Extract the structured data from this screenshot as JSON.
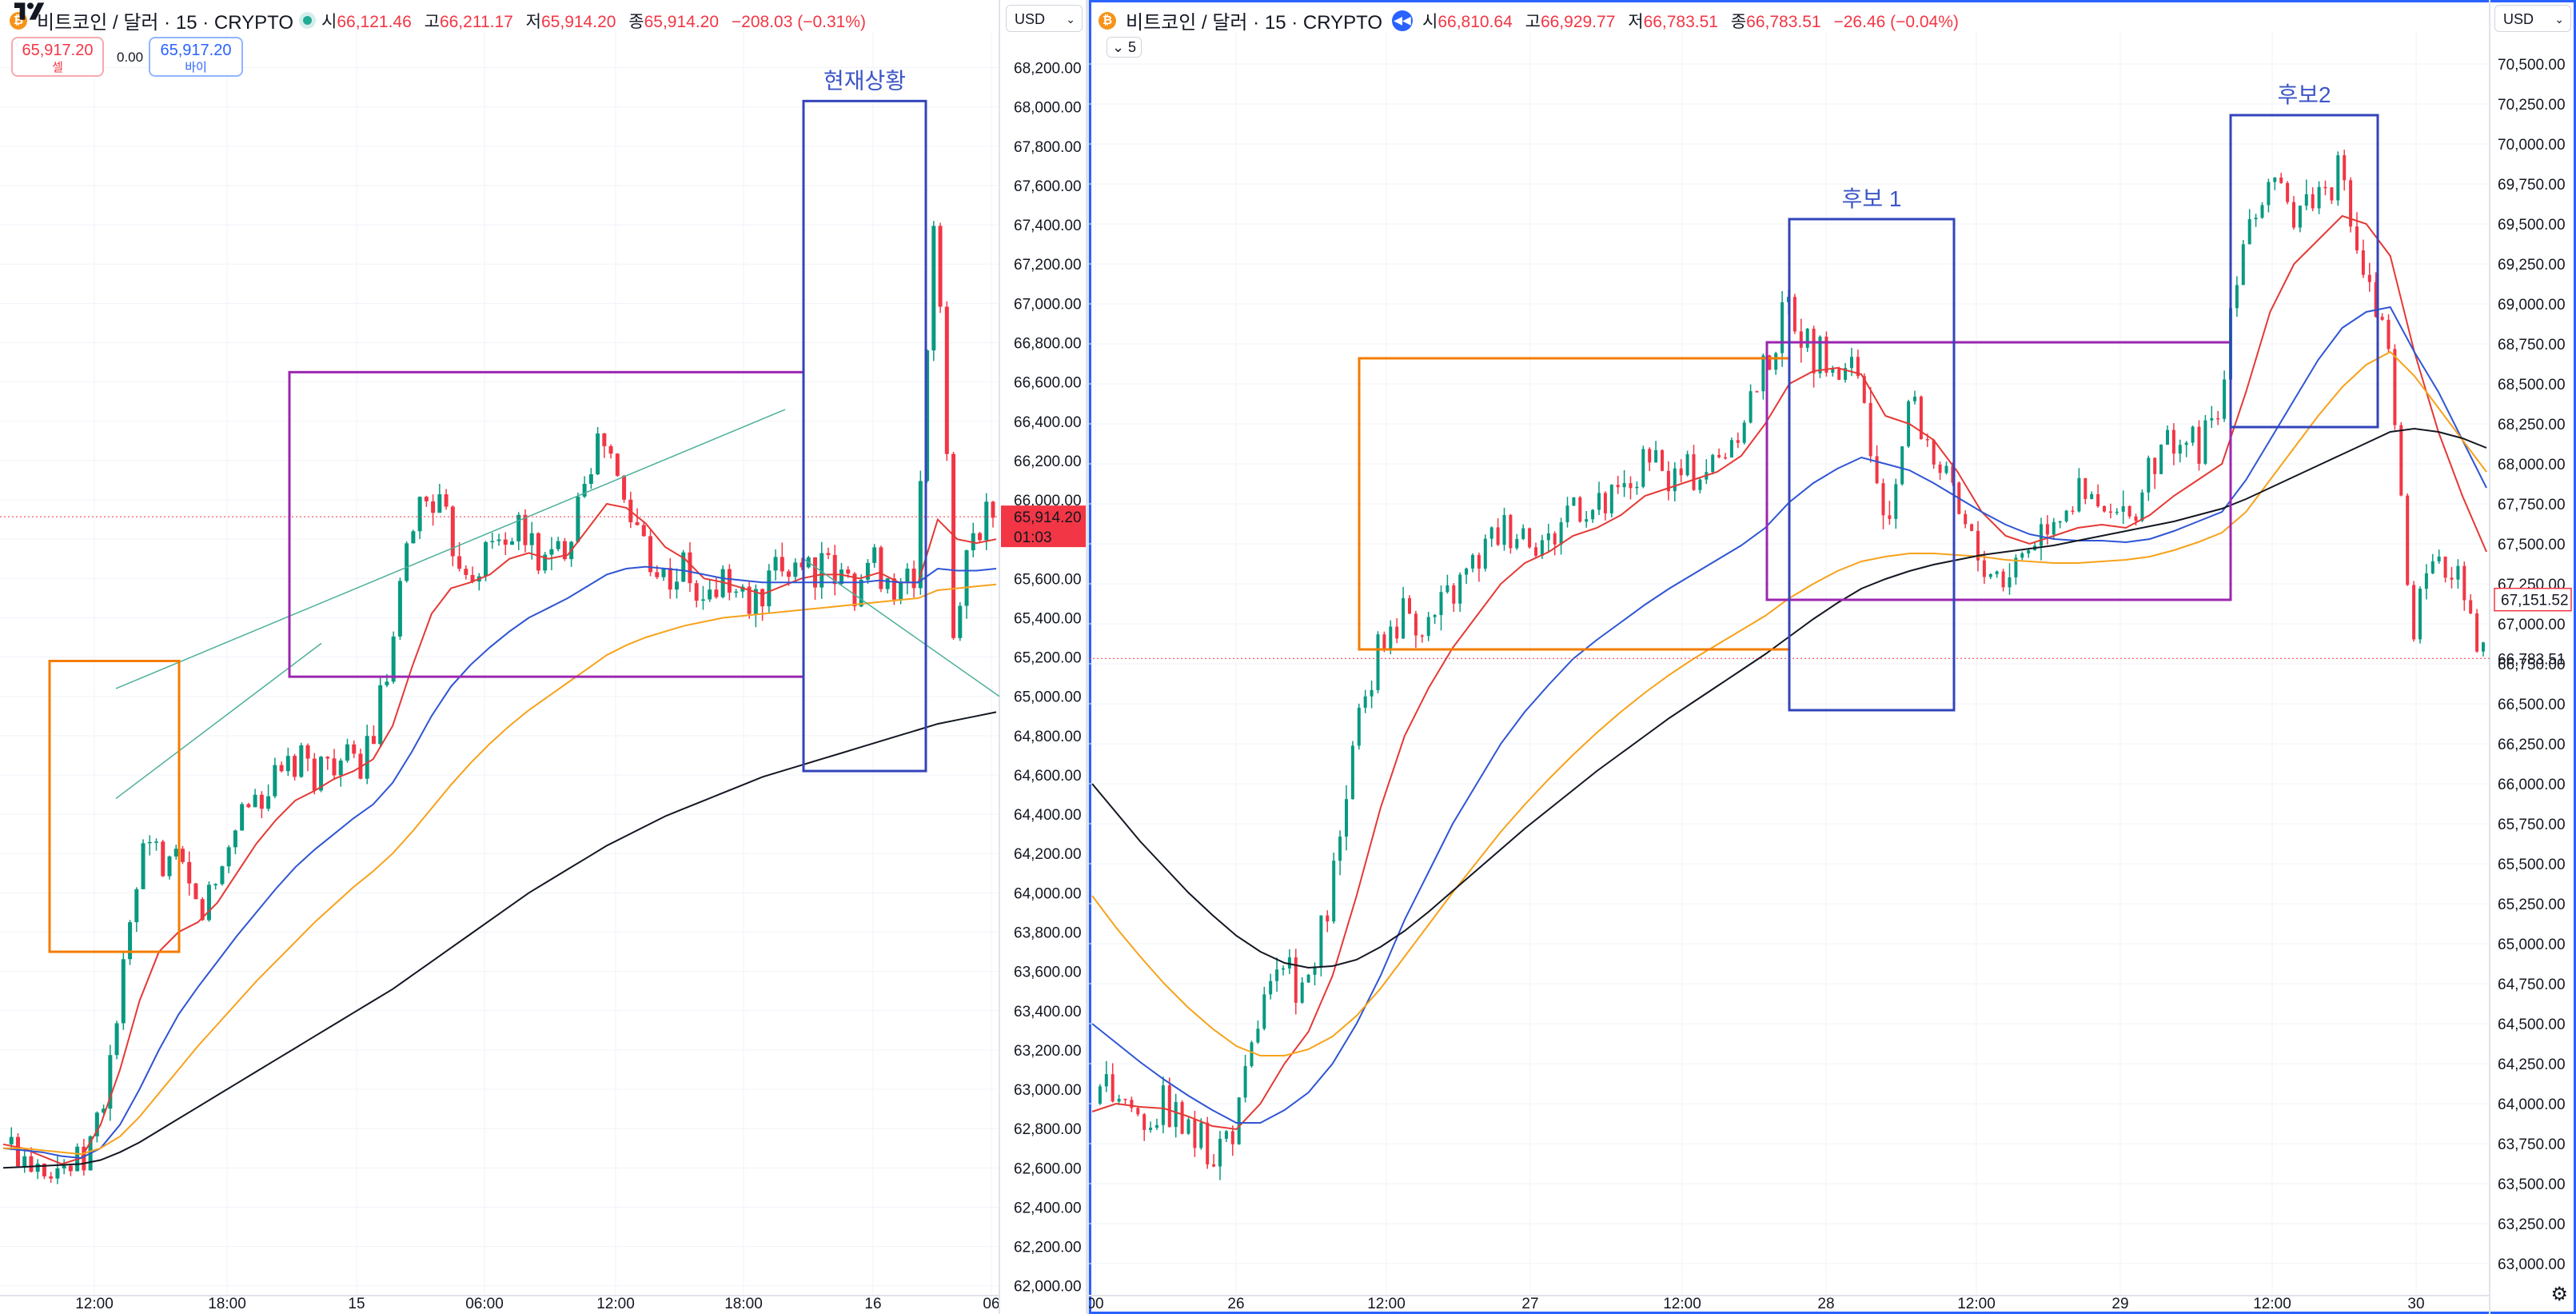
{
  "left_chart": {
    "symbol_name": "비트코인",
    "currency": "달러",
    "interval": "15",
    "exchange": "CRYPTO",
    "ohlc": {
      "open_label": "시",
      "open": "66,121.46",
      "high_label": "고",
      "high": "66,211.17",
      "low_label": "저",
      "low": "65,914.20",
      "close_label": "종",
      "close": "65,914.20",
      "change": "−208.03 (−0.31%)"
    },
    "sell": {
      "price": "65,917.20",
      "label": "셀"
    },
    "buy": {
      "price": "65,917.20",
      "label": "바이"
    },
    "spread": "0.00",
    "currency_select": "USD",
    "price_badge": "65,914.20",
    "countdown": "01:03",
    "annotation": "현재상황",
    "brand_icon": "tradingview-logo",
    "status_icon": "live-dot-icon"
  },
  "right_chart": {
    "symbol_name": "비트코인",
    "currency": "달러",
    "interval": "15",
    "exchange": "CRYPTO",
    "ohlc": {
      "open_label": "시",
      "open": "66,810.64",
      "high_label": "고",
      "high": "66,929.77",
      "low_label": "저",
      "low": "66,783.51",
      "close_label": "종",
      "close": "66,783.51",
      "change": "−26.46 (−0.04%)"
    },
    "indicator_count": "5",
    "currency_select": "USD",
    "price_badge": "66,783.51",
    "ma_badge": "67,151.52",
    "annotation_1": "후보 1",
    "annotation_2": "후보2",
    "replay_icon": "rewind-icon",
    "settings_icon": "gear-icon"
  },
  "colors": {
    "up": "#089981",
    "down": "#f23645",
    "ma_red": "#e53935",
    "ma_blue": "#2f55d4",
    "ma_orange": "#f7a21b",
    "ma_black": "#131722",
    "box_orange": "#f57c00",
    "box_purple": "#9c27b0",
    "box_blue": "#3344bb",
    "trend": "#4caf9a"
  },
  "chart_data": [
    {
      "type": "candlestick",
      "title": "비트코인 / 달러 · 15 · CRYPTO",
      "y_ticks": [
        62000,
        62200,
        62400,
        62600,
        62800,
        63000,
        63200,
        63400,
        63600,
        63800,
        64000,
        64200,
        64400,
        64600,
        64800,
        65000,
        65200,
        65400,
        65600,
        65800,
        66000,
        66200,
        66400,
        66600,
        66800,
        67000,
        67200,
        67400,
        67600,
        67800,
        68000,
        68200
      ],
      "ylim": [
        61950,
        68300
      ],
      "x_ticks": [
        "12:00",
        "18:00",
        "15",
        "06:00",
        "12:00",
        "18:00",
        "16",
        "06"
      ],
      "close_path": [
        62720,
        62680,
        62650,
        62610,
        62600,
        62900,
        63500,
        64150,
        64200,
        64100,
        63900,
        64050,
        64400,
        64500,
        64550,
        64650,
        64620,
        64700,
        64620,
        64800,
        65200,
        65900,
        66050,
        65800,
        65650,
        65750,
        65850,
        65800,
        65650,
        65800,
        66200,
        66300,
        65950,
        65800,
        65600,
        65650,
        65450,
        65600,
        65500,
        65450,
        65650,
        65700,
        65650,
        65600,
        65550,
        65700,
        65500,
        65600,
        67550,
        65300,
        65900,
        65914.2
      ],
      "moving_averages": [
        {
          "color": "red",
          "values": [
            62720,
            62700,
            62660,
            62620,
            62650,
            62820,
            63100,
            63450,
            63700,
            63800,
            63850,
            63950,
            64100,
            64250,
            64370,
            64470,
            64520,
            64580,
            64620,
            64680,
            64850,
            65150,
            65420,
            65550,
            65580,
            65620,
            65700,
            65730,
            65700,
            65720,
            65850,
            65980,
            65960,
            65880,
            65760,
            65700,
            65600,
            65580,
            65550,
            65520,
            65560,
            65600,
            65620,
            65620,
            65600,
            65630,
            65580,
            65580,
            65900,
            65800,
            65780,
            65800
          ]
        },
        {
          "color": "blue",
          "values": [
            62700,
            62690,
            62680,
            62660,
            62650,
            62700,
            62820,
            63000,
            63200,
            63380,
            63520,
            63650,
            63780,
            63900,
            64020,
            64130,
            64220,
            64300,
            64380,
            64450,
            64560,
            64720,
            64900,
            65050,
            65160,
            65250,
            65330,
            65400,
            65450,
            65500,
            65560,
            65620,
            65650,
            65660,
            65650,
            65640,
            65620,
            65600,
            65590,
            65580,
            65580,
            65580,
            65580,
            65580,
            65580,
            65590,
            65580,
            65580,
            65650,
            65640,
            65640,
            65650
          ]
        },
        {
          "color": "orange",
          "values": [
            62700,
            62700,
            62690,
            62680,
            62670,
            62700,
            62760,
            62860,
            62980,
            63100,
            63220,
            63330,
            63440,
            63550,
            63650,
            63750,
            63850,
            63940,
            64030,
            64110,
            64200,
            64310,
            64430,
            64550,
            64660,
            64760,
            64850,
            64930,
            65000,
            65070,
            65140,
            65210,
            65260,
            65300,
            65330,
            65360,
            65380,
            65400,
            65410,
            65420,
            65430,
            65440,
            65450,
            65460,
            65470,
            65480,
            65490,
            65500,
            65540,
            65550,
            65560,
            65570
          ]
        },
        {
          "color": "black",
          "values": [
            62600,
            62605,
            62610,
            62615,
            62620,
            62640,
            62680,
            62730,
            62790,
            62850,
            62910,
            62970,
            63030,
            63090,
            63150,
            63210,
            63270,
            63330,
            63390,
            63450,
            63510,
            63580,
            63650,
            63720,
            63790,
            63860,
            63930,
            64000,
            64060,
            64120,
            64180,
            64240,
            64290,
            64340,
            64390,
            64430,
            64470,
            64510,
            64550,
            64590,
            64620,
            64650,
            64680,
            64710,
            64740,
            64770,
            64800,
            64830,
            64860,
            64880,
            64900,
            64920
          ]
        }
      ],
      "boxes": [
        {
          "color": "orange",
          "price_range": [
            63700,
            65180
          ]
        },
        {
          "color": "purple",
          "price_range": [
            65100,
            66650
          ]
        },
        {
          "color": "blue",
          "label": "현재상황",
          "price_range": [
            64620,
            68030
          ]
        }
      ]
    },
    {
      "type": "candlestick",
      "title": "비트코인 / 달러 · 15 · CRYPTO",
      "y_ticks": [
        63000,
        63250,
        63500,
        63750,
        64000,
        64250,
        64500,
        64750,
        65000,
        65250,
        65500,
        65750,
        66000,
        66250,
        66500,
        66750,
        67000,
        67250,
        67500,
        67750,
        68000,
        68250,
        68500,
        68750,
        69000,
        69250,
        69500,
        69750,
        70000,
        70250,
        70500
      ],
      "ylim": [
        62800,
        70600
      ],
      "x_ticks": [
        "00",
        "26",
        "12:00",
        "27",
        "12:00",
        "28",
        "12:00",
        "29",
        "12:00",
        "30"
      ],
      "close_path": [
        64000,
        64100,
        63900,
        64000,
        63800,
        63700,
        63900,
        64600,
        64800,
        64700,
        65400,
        66300,
        66900,
        67100,
        67000,
        67200,
        67400,
        67600,
        67600,
        67500,
        67800,
        67700,
        67800,
        68000,
        67900,
        67950,
        68000,
        68300,
        68600,
        69000,
        68700,
        68600,
        68500,
        67500,
        68400,
        68100,
        67700,
        67400,
        67300,
        67500,
        67700,
        67800,
        67700,
        67600,
        67900,
        68200,
        68100,
        68300,
        69500,
        69700,
        69600,
        69700,
        69800,
        69200,
        68700,
        67000,
        67300,
        67400,
        66783.51
      ],
      "moving_averages": [
        {
          "color": "red",
          "values": [
            63950,
            64000,
            63980,
            63970,
            63920,
            63860,
            63840,
            64000,
            64250,
            64450,
            64800,
            65300,
            65850,
            66300,
            66600,
            66850,
            67050,
            67250,
            67380,
            67450,
            67550,
            67600,
            67680,
            67800,
            67850,
            67900,
            67950,
            68050,
            68250,
            68500,
            68580,
            68600,
            68560,
            68300,
            68250,
            68150,
            67950,
            67700,
            67550,
            67500,
            67550,
            67600,
            67620,
            67600,
            67680,
            67800,
            67900,
            68000,
            68450,
            68950,
            69250,
            69400,
            69550,
            69500,
            69300,
            68700,
            68200,
            67800,
            67450
          ]
        },
        {
          "color": "blue",
          "values": [
            64500,
            64380,
            64260,
            64150,
            64050,
            63960,
            63880,
            63880,
            63960,
            64070,
            64250,
            64500,
            64800,
            65150,
            65450,
            65750,
            66000,
            66250,
            66450,
            66620,
            66780,
            66900,
            67010,
            67120,
            67220,
            67310,
            67400,
            67490,
            67600,
            67760,
            67880,
            67970,
            68040,
            68000,
            67960,
            67880,
            67790,
            67700,
            67620,
            67560,
            67530,
            67520,
            67520,
            67510,
            67530,
            67580,
            67640,
            67700,
            67900,
            68150,
            68400,
            68650,
            68850,
            68950,
            68980,
            68700,
            68450,
            68150,
            67850
          ]
        },
        {
          "color": "orange",
          "values": [
            65300,
            65100,
            64920,
            64750,
            64600,
            64470,
            64360,
            64300,
            64300,
            64340,
            64420,
            64550,
            64720,
            64920,
            65120,
            65320,
            65510,
            65700,
            65870,
            66030,
            66180,
            66320,
            66450,
            66570,
            66680,
            66780,
            66870,
            66960,
            67050,
            67160,
            67250,
            67330,
            67390,
            67420,
            67440,
            67440,
            67430,
            67420,
            67400,
            67390,
            67380,
            67380,
            67390,
            67400,
            67420,
            67460,
            67510,
            67570,
            67700,
            67900,
            68100,
            68300,
            68480,
            68620,
            68700,
            68550,
            68350,
            68150,
            67950
          ]
        },
        {
          "color": "black",
          "values": [
            66000,
            65820,
            65640,
            65480,
            65320,
            65180,
            65050,
            64950,
            64880,
            64850,
            64860,
            64900,
            64980,
            65080,
            65200,
            65330,
            65460,
            65590,
            65720,
            65840,
            65960,
            66080,
            66190,
            66300,
            66410,
            66510,
            66610,
            66710,
            66810,
            66920,
            67030,
            67130,
            67220,
            67280,
            67330,
            67370,
            67400,
            67430,
            67450,
            67470,
            67490,
            67520,
            67550,
            67580,
            67610,
            67640,
            67680,
            67720,
            67780,
            67850,
            67920,
            67990,
            68060,
            68130,
            68200,
            68220,
            68200,
            68160,
            68100
          ]
        }
      ],
      "boxes": [
        {
          "color": "orange",
          "price_range": [
            66840,
            68660
          ]
        },
        {
          "color": "purple",
          "price_range": [
            67150,
            68760
          ]
        },
        {
          "color": "blue",
          "label": "후보 1",
          "price_range": [
            66460,
            69530
          ]
        },
        {
          "color": "blue",
          "label": "후보2",
          "price_range": [
            68230,
            70180
          ]
        }
      ]
    }
  ]
}
